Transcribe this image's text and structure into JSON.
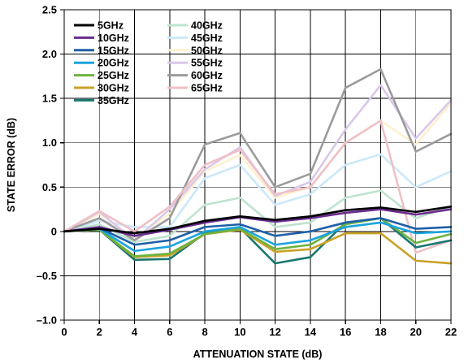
{
  "chart_data": {
    "type": "line",
    "title": "",
    "xlabel": "ATTENUATION STATE (dB)",
    "ylabel": "STATE ERROR (dB)",
    "xlim": [
      0,
      22
    ],
    "ylim": [
      -1.0,
      2.5
    ],
    "grid": true,
    "legend_position": "top-left",
    "x": [
      0,
      2,
      4,
      6,
      8,
      10,
      12,
      14,
      16,
      18,
      20,
      22
    ],
    "xticks": [
      0,
      2,
      4,
      6,
      8,
      10,
      12,
      14,
      16,
      18,
      20,
      22
    ],
    "xtick_labels": [
      "0",
      "2",
      "4",
      "6",
      "8",
      "10",
      "12",
      "14",
      "16",
      "18",
      "20",
      "22"
    ],
    "yticks": [
      -1.0,
      -0.5,
      0,
      0.5,
      1.0,
      1.5,
      2.0,
      2.5
    ],
    "ytick_labels": [
      "–1.0",
      "–0.5",
      "0",
      "0.5",
      "1.0",
      "1.5",
      "2.0",
      "2.5"
    ],
    "series": [
      {
        "name": "5GHz",
        "color": "#000000",
        "values": [
          0,
          0.03,
          -0.02,
          0.03,
          0.12,
          0.17,
          0.13,
          0.17,
          0.24,
          0.27,
          0.22,
          0.28
        ]
      },
      {
        "name": "10GHz",
        "color": "#6a2c8f",
        "values": [
          0,
          0.05,
          -0.05,
          0.02,
          0.1,
          0.16,
          0.11,
          0.15,
          0.21,
          0.25,
          0.19,
          0.25
        ]
      },
      {
        "name": "15GHz",
        "color": "#1e5fa8",
        "values": [
          0,
          0.04,
          -0.15,
          -0.1,
          0.05,
          0.08,
          -0.05,
          0.0,
          0.1,
          0.15,
          0.03,
          0.05
        ]
      },
      {
        "name": "20GHz",
        "color": "#1aa3df",
        "values": [
          0,
          0.03,
          -0.22,
          -0.17,
          0.0,
          0.05,
          -0.15,
          -0.1,
          0.05,
          0.1,
          -0.02,
          0.0
        ]
      },
      {
        "name": "25GHz",
        "color": "#6db33f",
        "values": [
          0,
          0.02,
          -0.28,
          -0.25,
          -0.03,
          0.03,
          -0.2,
          -0.15,
          0.08,
          0.15,
          -0.13,
          -0.03
        ]
      },
      {
        "name": "30GHz",
        "color": "#c9a227",
        "values": [
          0,
          0.02,
          -0.29,
          -0.27,
          -0.03,
          0.02,
          -0.23,
          -0.2,
          -0.02,
          -0.02,
          -0.33,
          -0.36
        ]
      },
      {
        "name": "35GHz",
        "color": "#17776f",
        "values": [
          0,
          0.02,
          -0.32,
          -0.31,
          -0.02,
          0.04,
          -0.36,
          -0.29,
          0.1,
          0.15,
          -0.18,
          -0.1
        ]
      },
      {
        "name": "40GHz",
        "color": "#bfe3cf",
        "values": [
          0,
          0.08,
          -0.12,
          -0.05,
          0.3,
          0.38,
          0.05,
          0.1,
          0.38,
          0.46,
          0.15,
          0.28
        ]
      },
      {
        "name": "45GHz",
        "color": "#cce8f8",
        "values": [
          0,
          0.12,
          0.05,
          0.05,
          0.6,
          0.75,
          0.3,
          0.42,
          0.75,
          0.87,
          0.5,
          0.68
        ]
      },
      {
        "name": "50GHz",
        "color": "#fdf0cf",
        "values": [
          0,
          0.2,
          -0.08,
          0.2,
          0.68,
          0.86,
          0.38,
          0.5,
          1.0,
          1.25,
          0.98,
          1.45
        ]
      },
      {
        "name": "55GHz",
        "color": "#d9c8e8",
        "values": [
          0,
          0.22,
          -0.1,
          0.25,
          0.7,
          0.95,
          0.4,
          0.56,
          1.15,
          1.65,
          1.05,
          1.48
        ]
      },
      {
        "name": "60GHz",
        "color": "#9b9b9b",
        "values": [
          0,
          0.15,
          -0.1,
          0.15,
          0.98,
          1.11,
          0.5,
          0.65,
          1.62,
          1.83,
          0.9,
          1.1
        ]
      },
      {
        "name": "65GHz",
        "color": "#efc0c6",
        "values": [
          0,
          0.23,
          0.0,
          0.28,
          0.75,
          0.92,
          0.42,
          0.5,
          1.0,
          1.25,
          -0.24,
          -0.1
        ]
      }
    ]
  }
}
